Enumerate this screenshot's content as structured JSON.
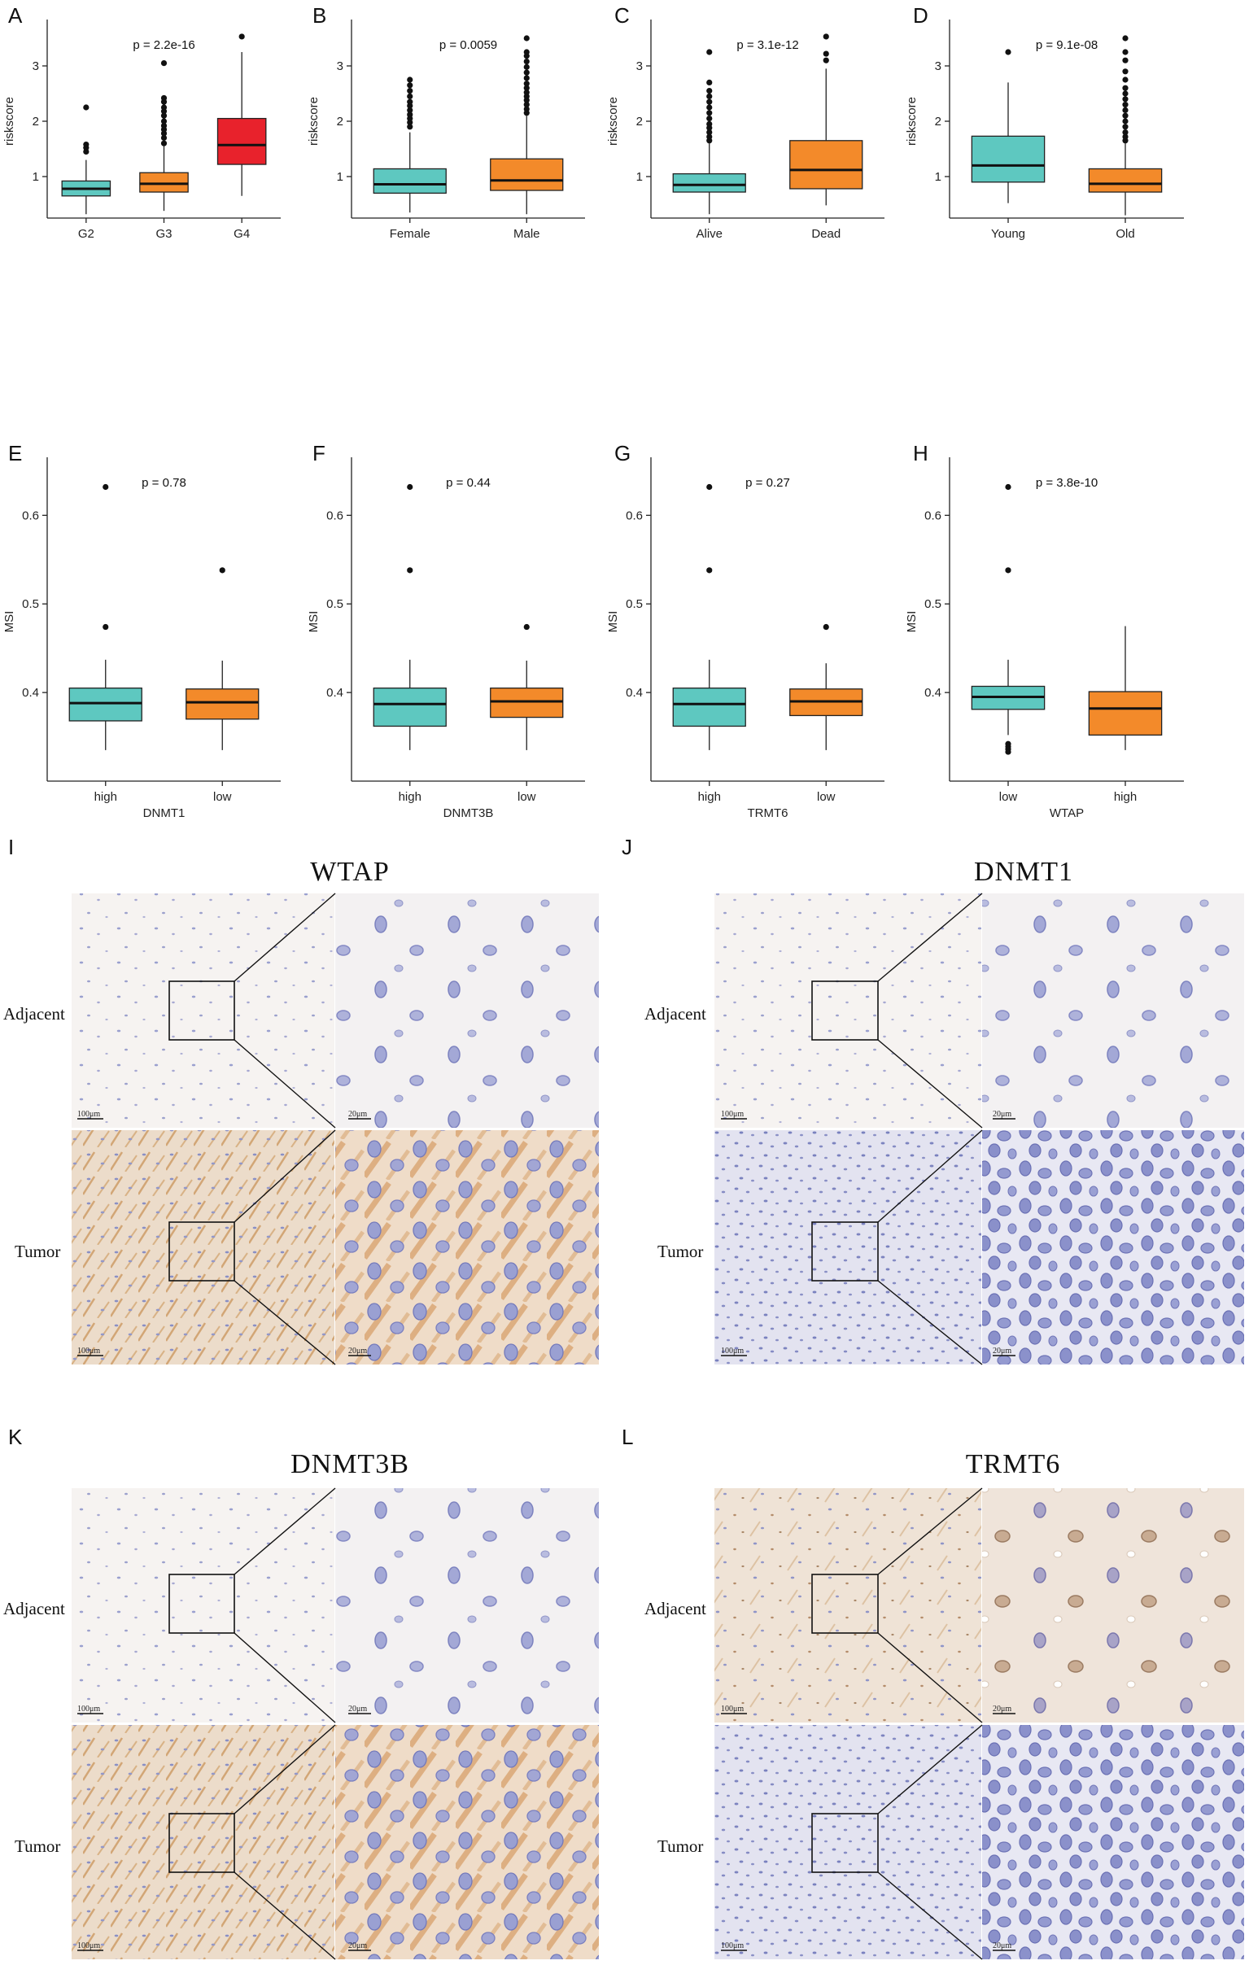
{
  "colors": {
    "teal": "#5ec8c0",
    "orange": "#f38a2a",
    "red": "#e8222c",
    "outline": "#111111",
    "tissue_light": "#f4f1ef",
    "tissue_tan": "#ead9c6",
    "tissue_blue": "#dfe0ef",
    "nucleus": "#7e86c4",
    "brown_stain": "#c9925a"
  },
  "chart_data": [
    {
      "panel": "A",
      "type": "box",
      "ylabel": "riskscore",
      "xlabel": "",
      "pvalue": "p = 2.2e-16",
      "ylim": [
        0.25,
        3.75
      ],
      "yticks": [
        1,
        2,
        3
      ],
      "groups": [
        {
          "label": "G2",
          "min": 0.32,
          "q1": 0.65,
          "median": 0.78,
          "q3": 0.92,
          "max": 1.3,
          "outliers": [
            1.45,
            1.52,
            1.58,
            2.25
          ],
          "color": "#5ec8c0"
        },
        {
          "label": "G3",
          "min": 0.38,
          "q1": 0.72,
          "median": 0.87,
          "q3": 1.07,
          "max": 1.55,
          "outliers": [
            1.6,
            1.7,
            1.78,
            1.85,
            1.92,
            2.0,
            2.1,
            2.18,
            2.25,
            2.35,
            2.42,
            3.05
          ],
          "color": "#f38a2a"
        },
        {
          "label": "G4",
          "min": 0.65,
          "q1": 1.22,
          "median": 1.57,
          "q3": 2.05,
          "max": 3.25,
          "outliers": [
            3.53
          ],
          "color": "#e8222c"
        }
      ]
    },
    {
      "panel": "B",
      "type": "box",
      "ylabel": "riskscore",
      "xlabel": "",
      "pvalue": "p = 0.0059",
      "ylim": [
        0.25,
        3.75
      ],
      "yticks": [
        1,
        2,
        3
      ],
      "groups": [
        {
          "label": "Female",
          "min": 0.35,
          "q1": 0.7,
          "median": 0.86,
          "q3": 1.14,
          "max": 1.8,
          "outliers": [
            1.9,
            1.98,
            2.05,
            2.12,
            2.2,
            2.28,
            2.35,
            2.45,
            2.55,
            2.65,
            2.75
          ],
          "color": "#5ec8c0"
        },
        {
          "label": "Male",
          "min": 0.32,
          "q1": 0.75,
          "median": 0.93,
          "q3": 1.32,
          "max": 2.1,
          "outliers": [
            2.15,
            2.22,
            2.3,
            2.38,
            2.45,
            2.52,
            2.6,
            2.68,
            2.78,
            2.88,
            2.98,
            3.08,
            3.18,
            3.25,
            3.5
          ],
          "color": "#f38a2a"
        }
      ]
    },
    {
      "panel": "C",
      "type": "box",
      "ylabel": "riskscore",
      "xlabel": "",
      "pvalue": "p = 3.1e-12",
      "ylim": [
        0.25,
        3.75
      ],
      "yticks": [
        1,
        2,
        3
      ],
      "groups": [
        {
          "label": "Alive",
          "min": 0.32,
          "q1": 0.72,
          "median": 0.85,
          "q3": 1.05,
          "max": 1.6,
          "outliers": [
            1.65,
            1.72,
            1.8,
            1.88,
            1.95,
            2.05,
            2.15,
            2.25,
            2.35,
            2.45,
            2.55,
            2.7,
            3.25
          ],
          "color": "#5ec8c0"
        },
        {
          "label": "Dead",
          "min": 0.48,
          "q1": 0.78,
          "median": 1.12,
          "q3": 1.65,
          "max": 2.95,
          "outliers": [
            3.1,
            3.22,
            3.53
          ],
          "color": "#f38a2a"
        }
      ]
    },
    {
      "panel": "D",
      "type": "box",
      "ylabel": "riskscore",
      "xlabel": "",
      "pvalue": "p = 9.1e-08",
      "ylim": [
        0.25,
        3.75
      ],
      "yticks": [
        1,
        2,
        3
      ],
      "groups": [
        {
          "label": "Young",
          "min": 0.52,
          "q1": 0.9,
          "median": 1.2,
          "q3": 1.73,
          "max": 2.7,
          "outliers": [
            3.25
          ],
          "color": "#5ec8c0"
        },
        {
          "label": "Old",
          "min": 0.3,
          "q1": 0.72,
          "median": 0.87,
          "q3": 1.14,
          "max": 1.6,
          "outliers": [
            1.65,
            1.72,
            1.8,
            1.9,
            2.0,
            2.1,
            2.2,
            2.3,
            2.4,
            2.5,
            2.6,
            2.75,
            2.9,
            3.1,
            3.25,
            3.5
          ],
          "color": "#f38a2a"
        }
      ]
    },
    {
      "panel": "E",
      "type": "box",
      "ylabel": "MSI",
      "xlabel": "DNMT1",
      "pvalue": "p = 0.78",
      "ylim": [
        0.3,
        0.66
      ],
      "yticks": [
        0.4,
        0.5,
        0.6
      ],
      "groups": [
        {
          "label": "high",
          "min": 0.335,
          "q1": 0.368,
          "median": 0.388,
          "q3": 0.405,
          "max": 0.437,
          "outliers": [
            0.474,
            0.632
          ],
          "color": "#5ec8c0"
        },
        {
          "label": "low",
          "min": 0.335,
          "q1": 0.37,
          "median": 0.389,
          "q3": 0.404,
          "max": 0.436,
          "outliers": [
            0.538
          ],
          "color": "#f38a2a"
        }
      ]
    },
    {
      "panel": "F",
      "type": "box",
      "ylabel": "MSI",
      "xlabel": "DNMT3B",
      "pvalue": "p = 0.44",
      "ylim": [
        0.3,
        0.66
      ],
      "yticks": [
        0.4,
        0.5,
        0.6
      ],
      "groups": [
        {
          "label": "high",
          "min": 0.335,
          "q1": 0.362,
          "median": 0.387,
          "q3": 0.405,
          "max": 0.437,
          "outliers": [
            0.538,
            0.632
          ],
          "color": "#5ec8c0"
        },
        {
          "label": "low",
          "min": 0.335,
          "q1": 0.372,
          "median": 0.39,
          "q3": 0.405,
          "max": 0.436,
          "outliers": [
            0.474
          ],
          "color": "#f38a2a"
        }
      ]
    },
    {
      "panel": "G",
      "type": "box",
      "ylabel": "MSI",
      "xlabel": "TRMT6",
      "pvalue": "p = 0.27",
      "ylim": [
        0.3,
        0.66
      ],
      "yticks": [
        0.4,
        0.5,
        0.6
      ],
      "groups": [
        {
          "label": "high",
          "min": 0.335,
          "q1": 0.362,
          "median": 0.387,
          "q3": 0.405,
          "max": 0.437,
          "outliers": [
            0.538,
            0.632
          ],
          "color": "#5ec8c0"
        },
        {
          "label": "low",
          "min": 0.335,
          "q1": 0.374,
          "median": 0.39,
          "q3": 0.404,
          "max": 0.433,
          "outliers": [
            0.474
          ],
          "color": "#f38a2a"
        }
      ]
    },
    {
      "panel": "H",
      "type": "box",
      "ylabel": "MSI",
      "xlabel": "WTAP",
      "pvalue": "p = 3.8e-10",
      "ylim": [
        0.3,
        0.66
      ],
      "yticks": [
        0.4,
        0.5,
        0.6
      ],
      "groups": [
        {
          "label": "low",
          "min": 0.352,
          "q1": 0.381,
          "median": 0.395,
          "q3": 0.407,
          "max": 0.437,
          "outliers": [
            0.333,
            0.336,
            0.339,
            0.342,
            0.538,
            0.632
          ],
          "color": "#5ec8c0"
        },
        {
          "label": "high",
          "min": 0.335,
          "q1": 0.352,
          "median": 0.382,
          "q3": 0.401,
          "max": 0.475,
          "outliers": [],
          "color": "#f38a2a"
        }
      ]
    }
  ],
  "ihc_panels": [
    {
      "panel": "I",
      "title": "WTAP",
      "rows": [
        "Adjacent",
        "Tumor"
      ],
      "scale_low": "100μm",
      "scale_high": "20μm"
    },
    {
      "panel": "J",
      "title": "DNMT1",
      "rows": [
        "Adjacent",
        "Tumor"
      ],
      "scale_low": "100μm",
      "scale_high": "20μm"
    },
    {
      "panel": "K",
      "title": "DNMT3B",
      "rows": [
        "Adjacent",
        "Tumor"
      ],
      "scale_low": "100μm",
      "scale_high": "20μm"
    },
    {
      "panel": "L",
      "title": "TRMT6",
      "rows": [
        "Adjacent",
        "Tumor"
      ],
      "scale_low": "100μm",
      "scale_high": "20μm"
    }
  ]
}
